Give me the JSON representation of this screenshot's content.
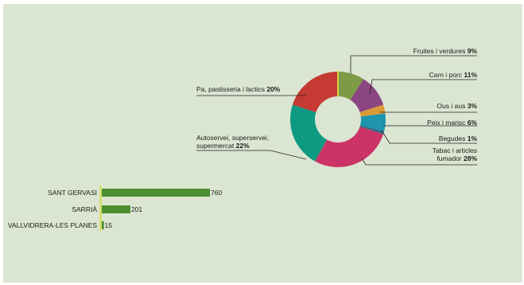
{
  "colors": {
    "background": "#dbe6d2",
    "bar": "#4b8e2f",
    "axis": "#d9d94a",
    "leader": "#222222"
  },
  "chart_data": [
    {
      "type": "pie",
      "donut": true,
      "title": "",
      "slices": [
        {
          "label": "Fruites i verdures",
          "value": 9,
          "display": "9%",
          "color": "#7d9a45"
        },
        {
          "label": "Carn i porc",
          "value": 11,
          "display": "11%",
          "color": "#8a4582"
        },
        {
          "label": "Ous i aus",
          "value": 3,
          "display": "3%",
          "color": "#d99a35"
        },
        {
          "label": "Peix i marisc",
          "value": 6,
          "display": "6%",
          "color": "#1d95ad"
        },
        {
          "label": "Begudes",
          "value": 1,
          "display": "1%",
          "color": "#2e6e85"
        },
        {
          "label": "Tabac i articles fumador",
          "label_lines": [
            "Tabac i articles",
            "fumador"
          ],
          "value": 28,
          "display": "28%",
          "color": "#cc3366"
        },
        {
          "label": "Autoservei, superservei, supermercat",
          "label_lines": [
            "Autoservei, superservei,",
            "supermercat"
          ],
          "value": 22,
          "display": "22%",
          "color": "#0e9a80"
        },
        {
          "label": "Pa, pastisseria i lactics",
          "value": 20,
          "display": "20%",
          "color": "#c53a33"
        }
      ]
    },
    {
      "type": "bar",
      "orientation": "horizontal",
      "title": "",
      "categories": [
        "SANT GERVASI",
        "SARRIÀ",
        "VALLVIDRERA-LES PLANES"
      ],
      "values": [
        760,
        201,
        15
      ],
      "xlim": [
        0,
        760
      ]
    }
  ]
}
